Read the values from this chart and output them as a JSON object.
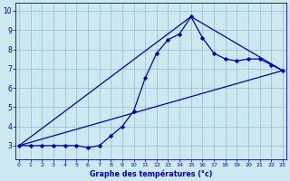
{
  "xlabel": "Graphe des températures (°c)",
  "background_color": "#cce8f0",
  "line_color": "#0000bb",
  "grid_color": "#99bbcc",
  "x_ticks": [
    0,
    1,
    2,
    3,
    4,
    5,
    6,
    7,
    8,
    9,
    10,
    11,
    12,
    13,
    14,
    15,
    16,
    17,
    18,
    19,
    20,
    21,
    22,
    23
  ],
  "y_ticks": [
    3,
    4,
    5,
    6,
    7,
    8,
    9,
    10
  ],
  "ylim": [
    2.3,
    10.4
  ],
  "xlim": [
    -0.3,
    23.3
  ],
  "series_main": {
    "x": [
      0,
      1,
      2,
      3,
      4,
      5,
      6,
      7,
      8,
      9,
      10,
      11,
      12,
      13,
      14,
      15,
      16,
      17,
      18,
      19,
      20,
      21,
      22,
      23
    ],
    "y": [
      3.0,
      3.0,
      3.0,
      3.0,
      3.0,
      3.0,
      2.9,
      3.0,
      3.5,
      4.0,
      4.8,
      6.5,
      7.8,
      8.5,
      8.8,
      9.7,
      8.6,
      7.8,
      7.5,
      7.4,
      7.5,
      7.5,
      7.2,
      6.9
    ]
  },
  "series_lower": {
    "x": [
      0,
      23
    ],
    "y": [
      3.0,
      6.9
    ]
  },
  "series_upper": {
    "x": [
      0,
      15,
      23
    ],
    "y": [
      3.0,
      9.7,
      6.9
    ]
  }
}
